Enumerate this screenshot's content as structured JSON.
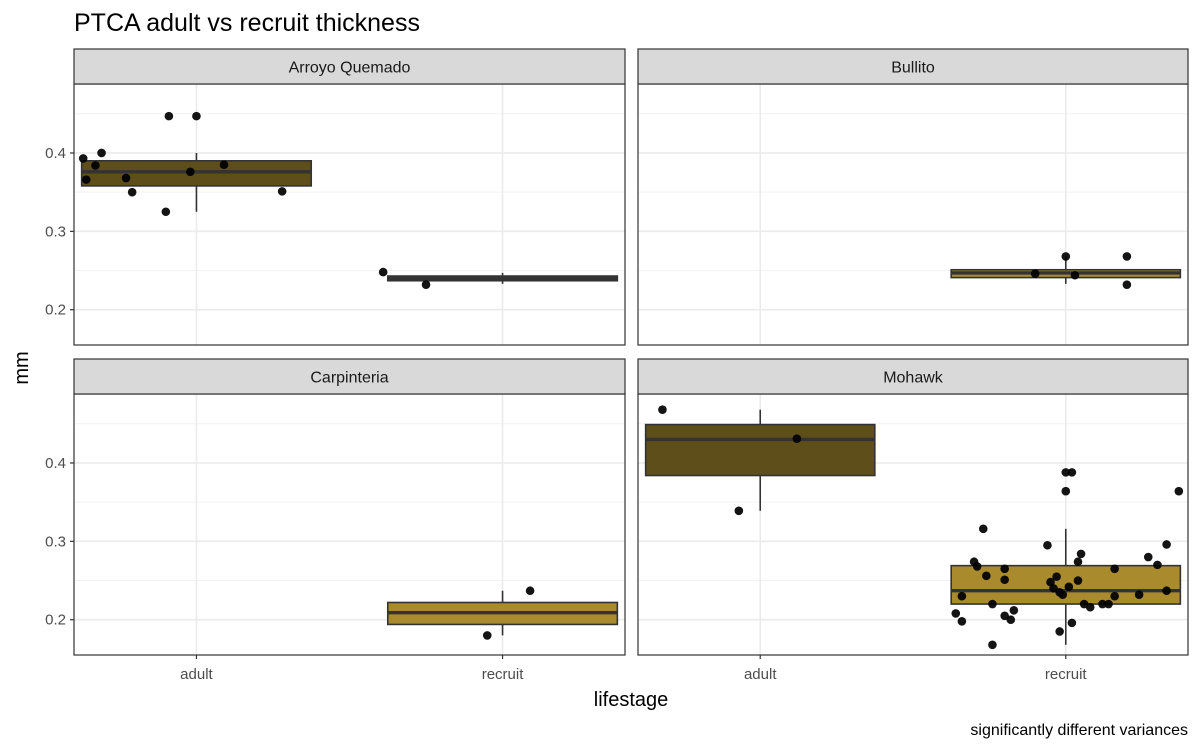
{
  "chart_data": {
    "type": "box",
    "title": "PTCA adult vs recruit thickness",
    "xlabel": "lifestage",
    "ylabel": "mm",
    "caption": "significantly different variances",
    "categories": [
      "adult",
      "recruit"
    ],
    "y_ticks": [
      0.2,
      0.3,
      0.4
    ],
    "ylim": [
      0.155,
      0.488
    ],
    "grid": true,
    "colors": {
      "adult_fill": "#5e4e19",
      "recruit_fill": "#a98b2e",
      "strip_fill": "#d9d9d9",
      "point": "#000000"
    },
    "facets": [
      {
        "name": "Arroyo Quemado",
        "boxes": [
          {
            "group": "adult",
            "q1": 0.358,
            "median": 0.376,
            "q3": 0.39,
            "whisker_low": 0.325,
            "whisker_high": 0.4
          },
          {
            "group": "recruit",
            "q1": 0.237,
            "median": 0.24,
            "q3": 0.243,
            "whisker_low": 0.233,
            "whisker_high": 0.247
          }
        ],
        "points": [
          {
            "group": "adult",
            "x": -0.37,
            "y": 0.393
          },
          {
            "group": "adult",
            "x": -0.36,
            "y": 0.366
          },
          {
            "group": "adult",
            "x": -0.33,
            "y": 0.384
          },
          {
            "group": "adult",
            "x": -0.31,
            "y": 0.4
          },
          {
            "group": "adult",
            "x": -0.23,
            "y": 0.368
          },
          {
            "group": "adult",
            "x": -0.21,
            "y": 0.35
          },
          {
            "group": "adult",
            "x": -0.1,
            "y": 0.325
          },
          {
            "group": "adult",
            "x": -0.09,
            "y": 0.447
          },
          {
            "group": "adult",
            "x": 0.0,
            "y": 0.447
          },
          {
            "group": "adult",
            "x": -0.02,
            "y": 0.376
          },
          {
            "group": "adult",
            "x": 0.09,
            "y": 0.385
          },
          {
            "group": "adult",
            "x": 0.28,
            "y": 0.351
          },
          {
            "group": "recruit",
            "x": -0.39,
            "y": 0.248
          },
          {
            "group": "recruit",
            "x": -0.25,
            "y": 0.232
          }
        ]
      },
      {
        "name": "Bullito",
        "boxes": [
          {
            "group": "recruit",
            "q1": 0.241,
            "median": 0.247,
            "q3": 0.251,
            "whisker_low": 0.233,
            "whisker_high": 0.268
          }
        ],
        "points": [
          {
            "group": "recruit",
            "x": -0.1,
            "y": 0.246
          },
          {
            "group": "recruit",
            "x": 0.0,
            "y": 0.268
          },
          {
            "group": "recruit",
            "x": 0.03,
            "y": 0.244
          },
          {
            "group": "recruit",
            "x": 0.2,
            "y": 0.268
          },
          {
            "group": "recruit",
            "x": 0.2,
            "y": 0.232
          }
        ]
      },
      {
        "name": "Carpinteria",
        "boxes": [
          {
            "group": "recruit",
            "q1": 0.194,
            "median": 0.209,
            "q3": 0.222,
            "whisker_low": 0.18,
            "whisker_high": 0.237
          }
        ],
        "points": [
          {
            "group": "recruit",
            "x": -0.05,
            "y": 0.18
          },
          {
            "group": "recruit",
            "x": 0.09,
            "y": 0.237
          }
        ]
      },
      {
        "name": "Mohawk",
        "boxes": [
          {
            "group": "adult",
            "q1": 0.384,
            "median": 0.43,
            "q3": 0.449,
            "whisker_low": 0.339,
            "whisker_high": 0.468
          },
          {
            "group": "recruit",
            "q1": 0.22,
            "median": 0.237,
            "q3": 0.269,
            "whisker_low": 0.168,
            "whisker_high": 0.316
          }
        ],
        "points": [
          {
            "group": "adult",
            "x": -0.32,
            "y": 0.468
          },
          {
            "group": "adult",
            "x": 0.12,
            "y": 0.431
          },
          {
            "group": "adult",
            "x": -0.07,
            "y": 0.339
          },
          {
            "group": "recruit",
            "x": -0.36,
            "y": 0.208
          },
          {
            "group": "recruit",
            "x": -0.34,
            "y": 0.198
          },
          {
            "group": "recruit",
            "x": -0.34,
            "y": 0.23
          },
          {
            "group": "recruit",
            "x": -0.3,
            "y": 0.274
          },
          {
            "group": "recruit",
            "x": -0.29,
            "y": 0.268
          },
          {
            "group": "recruit",
            "x": -0.27,
            "y": 0.316
          },
          {
            "group": "recruit",
            "x": -0.26,
            "y": 0.256
          },
          {
            "group": "recruit",
            "x": -0.24,
            "y": 0.168
          },
          {
            "group": "recruit",
            "x": -0.24,
            "y": 0.22
          },
          {
            "group": "recruit",
            "x": -0.2,
            "y": 0.251
          },
          {
            "group": "recruit",
            "x": -0.2,
            "y": 0.265
          },
          {
            "group": "recruit",
            "x": -0.2,
            "y": 0.205
          },
          {
            "group": "recruit",
            "x": -0.17,
            "y": 0.212
          },
          {
            "group": "recruit",
            "x": -0.18,
            "y": 0.2
          },
          {
            "group": "recruit",
            "x": -0.06,
            "y": 0.295
          },
          {
            "group": "recruit",
            "x": -0.05,
            "y": 0.248
          },
          {
            "group": "recruit",
            "x": -0.04,
            "y": 0.24
          },
          {
            "group": "recruit",
            "x": -0.03,
            "y": 0.255
          },
          {
            "group": "recruit",
            "x": -0.02,
            "y": 0.235
          },
          {
            "group": "recruit",
            "x": -0.02,
            "y": 0.185
          },
          {
            "group": "recruit",
            "x": -0.01,
            "y": 0.232
          },
          {
            "group": "recruit",
            "x": 0.0,
            "y": 0.364
          },
          {
            "group": "recruit",
            "x": 0.0,
            "y": 0.388
          },
          {
            "group": "recruit",
            "x": 0.02,
            "y": 0.388
          },
          {
            "group": "recruit",
            "x": 0.01,
            "y": 0.242
          },
          {
            "group": "recruit",
            "x": 0.02,
            "y": 0.196
          },
          {
            "group": "recruit",
            "x": 0.04,
            "y": 0.274
          },
          {
            "group": "recruit",
            "x": 0.04,
            "y": 0.25
          },
          {
            "group": "recruit",
            "x": 0.05,
            "y": 0.284
          },
          {
            "group": "recruit",
            "x": 0.06,
            "y": 0.22
          },
          {
            "group": "recruit",
            "x": 0.08,
            "y": 0.216
          },
          {
            "group": "recruit",
            "x": 0.12,
            "y": 0.22
          },
          {
            "group": "recruit",
            "x": 0.14,
            "y": 0.22
          },
          {
            "group": "recruit",
            "x": 0.16,
            "y": 0.265
          },
          {
            "group": "recruit",
            "x": 0.16,
            "y": 0.23
          },
          {
            "group": "recruit",
            "x": 0.24,
            "y": 0.232
          },
          {
            "group": "recruit",
            "x": 0.27,
            "y": 0.28
          },
          {
            "group": "recruit",
            "x": 0.3,
            "y": 0.27
          },
          {
            "group": "recruit",
            "x": 0.33,
            "y": 0.296
          },
          {
            "group": "recruit",
            "x": 0.33,
            "y": 0.237
          },
          {
            "group": "recruit",
            "x": 0.37,
            "y": 0.364
          }
        ]
      }
    ]
  }
}
